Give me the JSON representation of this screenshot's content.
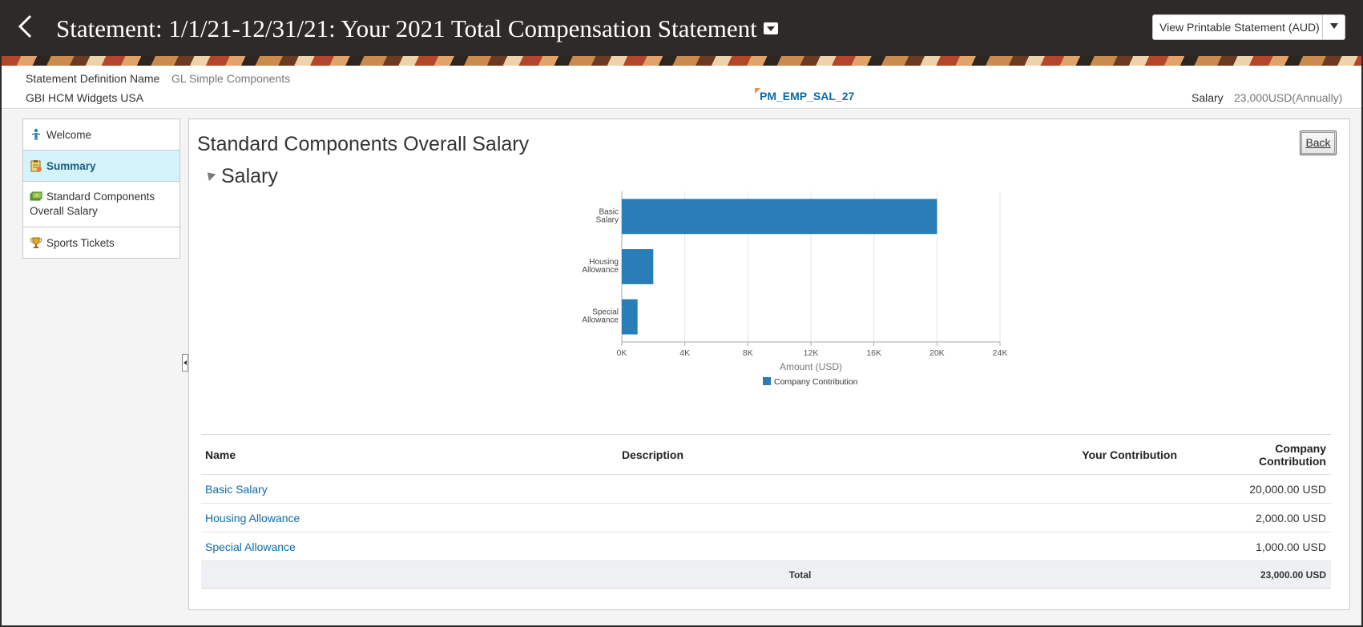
{
  "header": {
    "title": "Statement: 1/1/21-12/31/21: Your 2021 Total Compensation Statement",
    "print_button": "View Printable Statement (AUD)"
  },
  "info": {
    "definition_label": "Statement Definition Name",
    "definition_value": "GL Simple Components",
    "organization": "GBI HCM Widgets USA",
    "employee_code": "PM_EMP_SAL_27",
    "salary_label": "Salary",
    "salary_value": "23,000USD(Annually)"
  },
  "nav": {
    "items": [
      {
        "label": "Welcome",
        "icon": "welcome-icon"
      },
      {
        "label": "Summary",
        "icon": "summary-icon"
      },
      {
        "label": "Standard Components Overall Salary",
        "icon": "money-icon"
      },
      {
        "label": "Sports Tickets",
        "icon": "trophy-icon"
      }
    ]
  },
  "main": {
    "title": "Standard Components Overall Salary",
    "back_button": "Back",
    "section_title": "Salary"
  },
  "chart_data": {
    "type": "bar",
    "orientation": "horizontal",
    "categories": [
      "Basic Salary",
      "Housing Allowance",
      "Special Allowance"
    ],
    "category_lines": [
      [
        "Basic",
        "Salary"
      ],
      [
        "Housing",
        "Allowance"
      ],
      [
        "Special",
        "Allowance"
      ]
    ],
    "series": [
      {
        "name": "Company Contribution",
        "values": [
          20000,
          2000,
          1000
        ]
      }
    ],
    "xlabel": "Amount (USD)",
    "xlim": [
      0,
      24000
    ],
    "ticks": [
      0,
      4000,
      8000,
      12000,
      16000,
      20000,
      24000
    ],
    "tick_labels": [
      "0K",
      "4K",
      "8K",
      "12K",
      "16K",
      "20K",
      "24K"
    ],
    "grid": true,
    "legend": "bottom",
    "bar_color": "#2a7db6"
  },
  "table": {
    "headers": {
      "name": "Name",
      "description": "Description",
      "your_contribution": "Your Contribution",
      "company_contribution": "Company Contribution"
    },
    "rows": [
      {
        "name": "Basic Salary",
        "description": "",
        "your_contribution": "",
        "company_contribution": "20,000.00 USD"
      },
      {
        "name": "Housing Allowance",
        "description": "",
        "your_contribution": "",
        "company_contribution": "2,000.00 USD"
      },
      {
        "name": "Special Allowance",
        "description": "",
        "your_contribution": "",
        "company_contribution": "1,000.00 USD"
      }
    ],
    "total_label": "Total",
    "total_value": "23,000.00 USD"
  }
}
